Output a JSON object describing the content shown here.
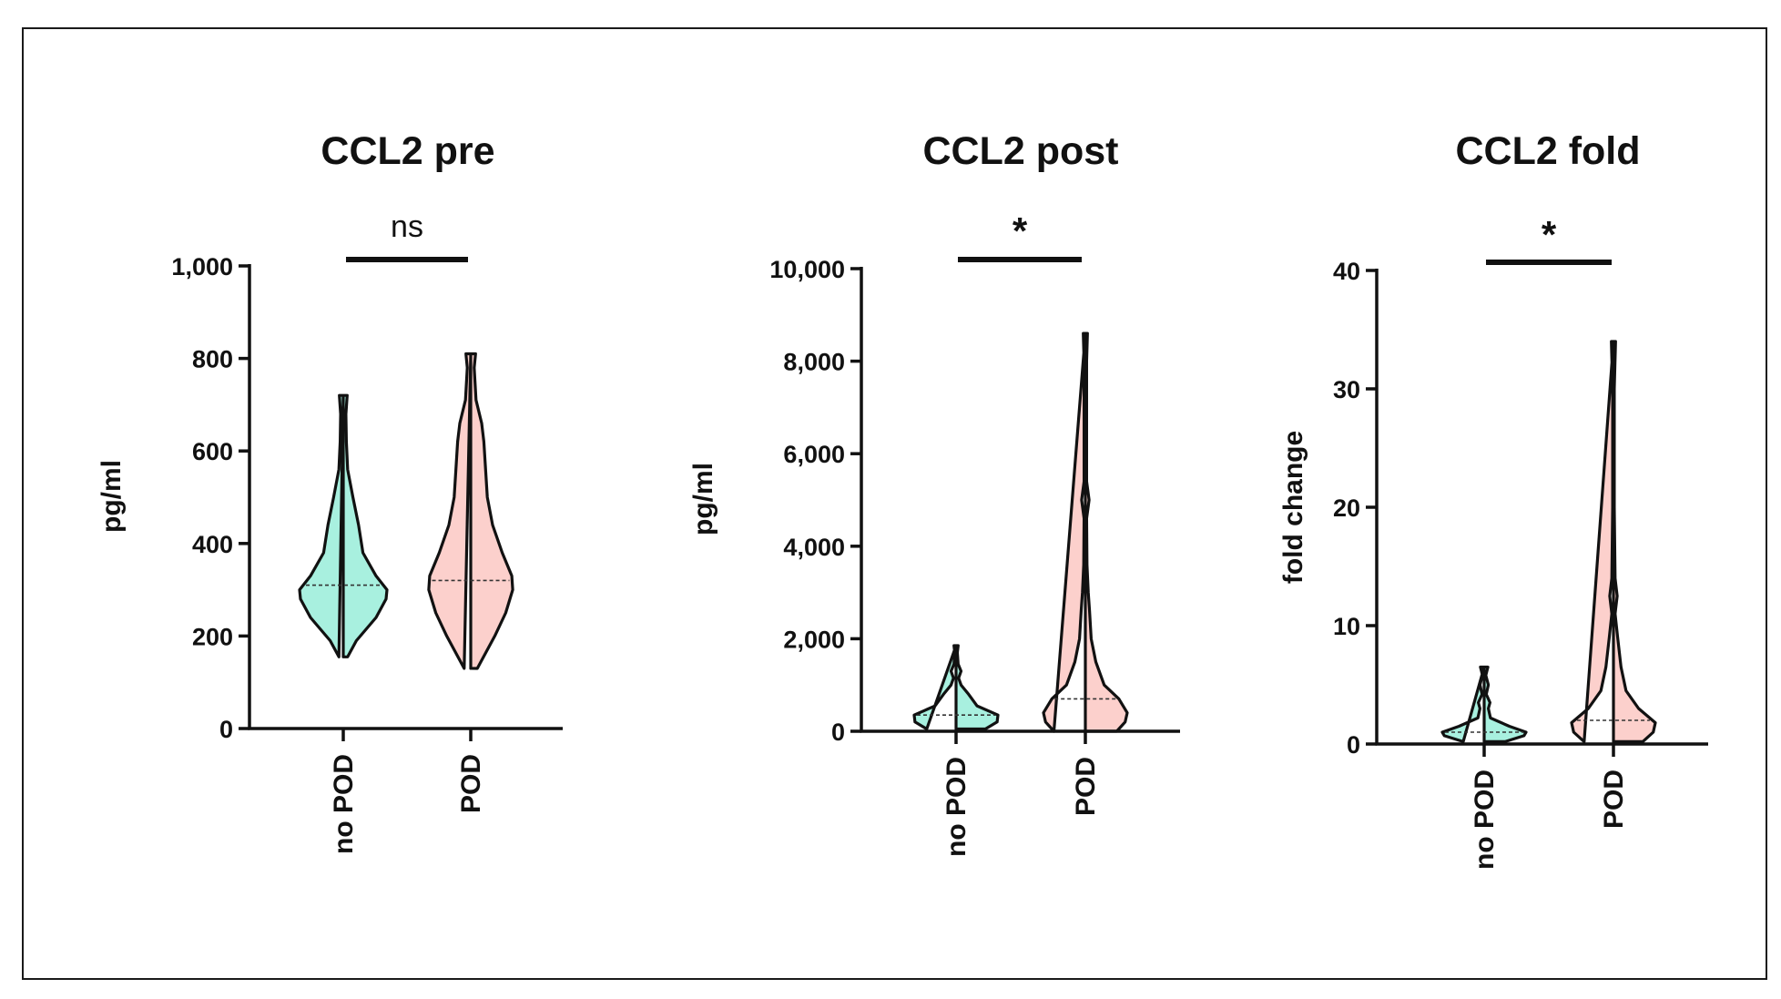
{
  "chart_data": [
    {
      "type": "violin",
      "title": "CCL2 pre",
      "ylabel": "pg/ml",
      "ylim": [
        0,
        1000
      ],
      "yticks": [
        0,
        200,
        400,
        600,
        800,
        1000
      ],
      "ytick_labels": [
        "0",
        "200",
        "400",
        "600",
        "800",
        "1,000"
      ],
      "categories": [
        "no POD",
        "POD"
      ],
      "significance": "ns",
      "series": [
        {
          "name": "no POD",
          "color": "#a8f0df",
          "median": 310,
          "profile": [
            [
              155,
              0.1
            ],
            [
              190,
              0.3
            ],
            [
              240,
              0.75
            ],
            [
              280,
              0.98
            ],
            [
              300,
              1.0
            ],
            [
              330,
              0.75
            ],
            [
              380,
              0.45
            ],
            [
              440,
              0.35
            ],
            [
              500,
              0.22
            ],
            [
              560,
              0.1
            ],
            [
              620,
              0.07
            ],
            [
              680,
              0.06
            ],
            [
              720,
              0.09
            ]
          ]
        },
        {
          "name": "POD",
          "color": "#fcd0cc",
          "median": 320,
          "profile": [
            [
              130,
              0.15
            ],
            [
              200,
              0.55
            ],
            [
              250,
              0.8
            ],
            [
              300,
              0.96
            ],
            [
              330,
              0.94
            ],
            [
              380,
              0.72
            ],
            [
              440,
              0.5
            ],
            [
              500,
              0.38
            ],
            [
              560,
              0.34
            ],
            [
              620,
              0.3
            ],
            [
              660,
              0.25
            ],
            [
              710,
              0.12
            ],
            [
              780,
              0.08
            ],
            [
              810,
              0.11
            ]
          ]
        }
      ]
    },
    {
      "type": "violin",
      "title": "CCL2 post",
      "ylabel": "pg/ml",
      "ylim": [
        0,
        10000
      ],
      "yticks": [
        0,
        2000,
        4000,
        6000,
        8000,
        10000
      ],
      "ytick_labels": [
        "0",
        "2,000",
        "4,000",
        "6,000",
        "8,000",
        "10,000"
      ],
      "categories": [
        "no POD",
        "POD"
      ],
      "significance": "*",
      "series": [
        {
          "name": "no POD",
          "color": "#a8f0df",
          "median": 350,
          "profile": [
            [
              50,
              0.7
            ],
            [
              200,
              0.98
            ],
            [
              350,
              1.0
            ],
            [
              550,
              0.5
            ],
            [
              800,
              0.3
            ],
            [
              1000,
              0.12
            ],
            [
              1150,
              0.06
            ],
            [
              1300,
              0.12
            ],
            [
              1450,
              0.05
            ],
            [
              1700,
              0.03
            ],
            [
              1850,
              0.05
            ]
          ]
        },
        {
          "name": "POD",
          "color": "#fcd0cc",
          "median": 700,
          "profile": [
            [
              0,
              0.75
            ],
            [
              200,
              0.95
            ],
            [
              400,
              1.0
            ],
            [
              700,
              0.8
            ],
            [
              1000,
              0.45
            ],
            [
              1500,
              0.25
            ],
            [
              2000,
              0.14
            ],
            [
              2600,
              0.1
            ],
            [
              3000,
              0.07
            ],
            [
              3600,
              0.04
            ],
            [
              4600,
              0.03
            ],
            [
              5000,
              0.09
            ],
            [
              5400,
              0.03
            ],
            [
              6500,
              0.03
            ],
            [
              8000,
              0.03
            ],
            [
              8600,
              0.05
            ]
          ]
        }
      ]
    },
    {
      "type": "violin",
      "title": "CCL2 fold",
      "ylabel": "fold change",
      "ylim": [
        0,
        40
      ],
      "yticks": [
        0,
        10,
        20,
        30,
        40
      ],
      "ytick_labels": [
        "0",
        "10",
        "20",
        "30",
        "40"
      ],
      "categories": [
        "no POD",
        "POD"
      ],
      "significance": "*",
      "series": [
        {
          "name": "no POD",
          "color": "#a8f0df",
          "median": 1,
          "profile": [
            [
              0.2,
              0.5
            ],
            [
              0.7,
              0.95
            ],
            [
              1.0,
              1.0
            ],
            [
              1.5,
              0.6
            ],
            [
              2.2,
              0.15
            ],
            [
              3.0,
              0.1
            ],
            [
              3.5,
              0.14
            ],
            [
              4.2,
              0.05
            ],
            [
              5.0,
              0.1
            ],
            [
              5.8,
              0.04
            ],
            [
              6.5,
              0.09
            ]
          ]
        },
        {
          "name": "POD",
          "color": "#fcd0cc",
          "median": 2,
          "profile": [
            [
              0.2,
              0.7
            ],
            [
              1.0,
              0.95
            ],
            [
              1.8,
              1.0
            ],
            [
              3.0,
              0.6
            ],
            [
              4.5,
              0.3
            ],
            [
              6.5,
              0.18
            ],
            [
              9.0,
              0.1
            ],
            [
              11.0,
              0.04
            ],
            [
              12.5,
              0.09
            ],
            [
              14.0,
              0.04
            ],
            [
              20.0,
              0.02
            ],
            [
              30.0,
              0.02
            ],
            [
              34.0,
              0.05
            ]
          ]
        }
      ]
    }
  ]
}
